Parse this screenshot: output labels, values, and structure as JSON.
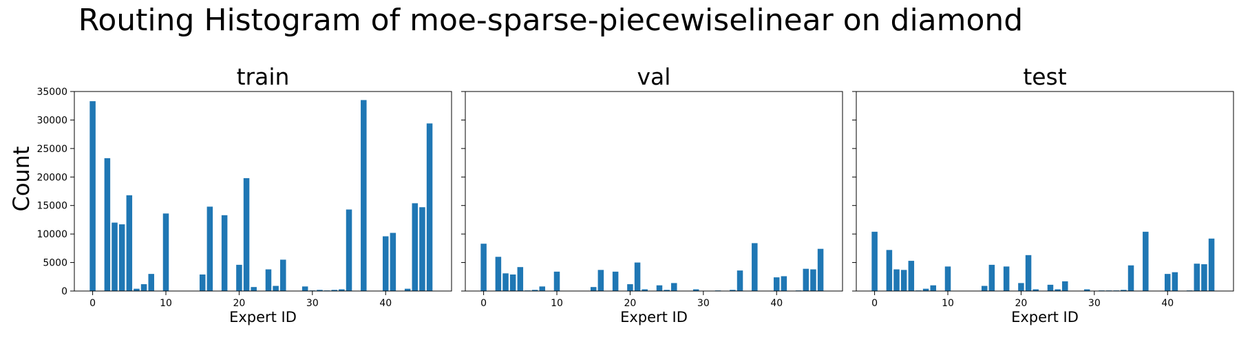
{
  "title": "Routing Histogram of moe-sparse-piecewiselinear on diamond",
  "ylabel": "Count",
  "colors": {
    "bar": "#1f77b4",
    "axis": "#000000",
    "background": "#ffffff"
  },
  "chart_data": [
    {
      "type": "bar",
      "title": "train",
      "xlabel": "Expert ID",
      "ylabel": "Count",
      "xlim": [
        -2.5,
        49
      ],
      "ylim": [
        0,
        35000
      ],
      "xticks": [
        0,
        10,
        20,
        30,
        40
      ],
      "yticks": [
        0,
        5000,
        10000,
        15000,
        20000,
        25000,
        30000,
        35000
      ],
      "grid": false,
      "x": [
        0,
        1,
        2,
        3,
        4,
        5,
        6,
        7,
        8,
        9,
        10,
        11,
        12,
        13,
        14,
        15,
        16,
        17,
        18,
        19,
        20,
        21,
        22,
        23,
        24,
        25,
        26,
        27,
        28,
        29,
        30,
        31,
        32,
        33,
        34,
        35,
        36,
        37,
        38,
        39,
        40,
        41,
        42,
        43,
        44,
        45,
        46,
        47
      ],
      "values": [
        33300,
        0,
        23300,
        12000,
        11700,
        16800,
        400,
        1200,
        3000,
        0,
        13600,
        0,
        0,
        0,
        0,
        2900,
        14800,
        0,
        13300,
        0,
        4600,
        19800,
        700,
        0,
        3800,
        900,
        5500,
        0,
        0,
        800,
        100,
        200,
        100,
        200,
        300,
        14300,
        0,
        33500,
        0,
        0,
        9600,
        10200,
        0,
        400,
        15400,
        14700,
        29400,
        0
      ]
    },
    {
      "type": "bar",
      "title": "val",
      "xlabel": "Expert ID",
      "xlim": [
        -2.5,
        49
      ],
      "ylim": [
        0,
        35000
      ],
      "xticks": [
        0,
        10,
        20,
        30,
        40
      ],
      "grid": false,
      "x": [
        0,
        1,
        2,
        3,
        4,
        5,
        6,
        7,
        8,
        9,
        10,
        11,
        12,
        13,
        14,
        15,
        16,
        17,
        18,
        19,
        20,
        21,
        22,
        23,
        24,
        25,
        26,
        27,
        28,
        29,
        30,
        31,
        32,
        33,
        34,
        35,
        36,
        37,
        38,
        39,
        40,
        41,
        42,
        43,
        44,
        45,
        46,
        47
      ],
      "values": [
        8300,
        0,
        6000,
        3100,
        2900,
        4200,
        100,
        200,
        800,
        0,
        3400,
        0,
        0,
        0,
        0,
        700,
        3700,
        0,
        3400,
        0,
        1200,
        5000,
        300,
        0,
        1000,
        200,
        1400,
        0,
        0,
        300,
        0,
        0,
        100,
        0,
        200,
        3600,
        0,
        8400,
        0,
        0,
        2400,
        2600,
        0,
        100,
        3900,
        3800,
        7400,
        0
      ]
    },
    {
      "type": "bar",
      "title": "test",
      "xlabel": "Expert ID",
      "xlim": [
        -2.5,
        49
      ],
      "ylim": [
        0,
        35000
      ],
      "xticks": [
        0,
        10,
        20,
        30,
        40
      ],
      "grid": false,
      "x": [
        0,
        1,
        2,
        3,
        4,
        5,
        6,
        7,
        8,
        9,
        10,
        11,
        12,
        13,
        14,
        15,
        16,
        17,
        18,
        19,
        20,
        21,
        22,
        23,
        24,
        25,
        26,
        27,
        28,
        29,
        30,
        31,
        32,
        33,
        34,
        35,
        36,
        37,
        38,
        39,
        40,
        41,
        42,
        43,
        44,
        45,
        46,
        47
      ],
      "values": [
        10400,
        0,
        7200,
        3800,
        3700,
        5300,
        100,
        400,
        1000,
        0,
        4300,
        0,
        0,
        0,
        0,
        900,
        4600,
        0,
        4300,
        0,
        1400,
        6300,
        300,
        0,
        1100,
        300,
        1700,
        0,
        0,
        300,
        0,
        100,
        100,
        100,
        200,
        4500,
        0,
        10400,
        0,
        0,
        3000,
        3300,
        0,
        100,
        4800,
        4700,
        9200,
        0
      ]
    }
  ]
}
